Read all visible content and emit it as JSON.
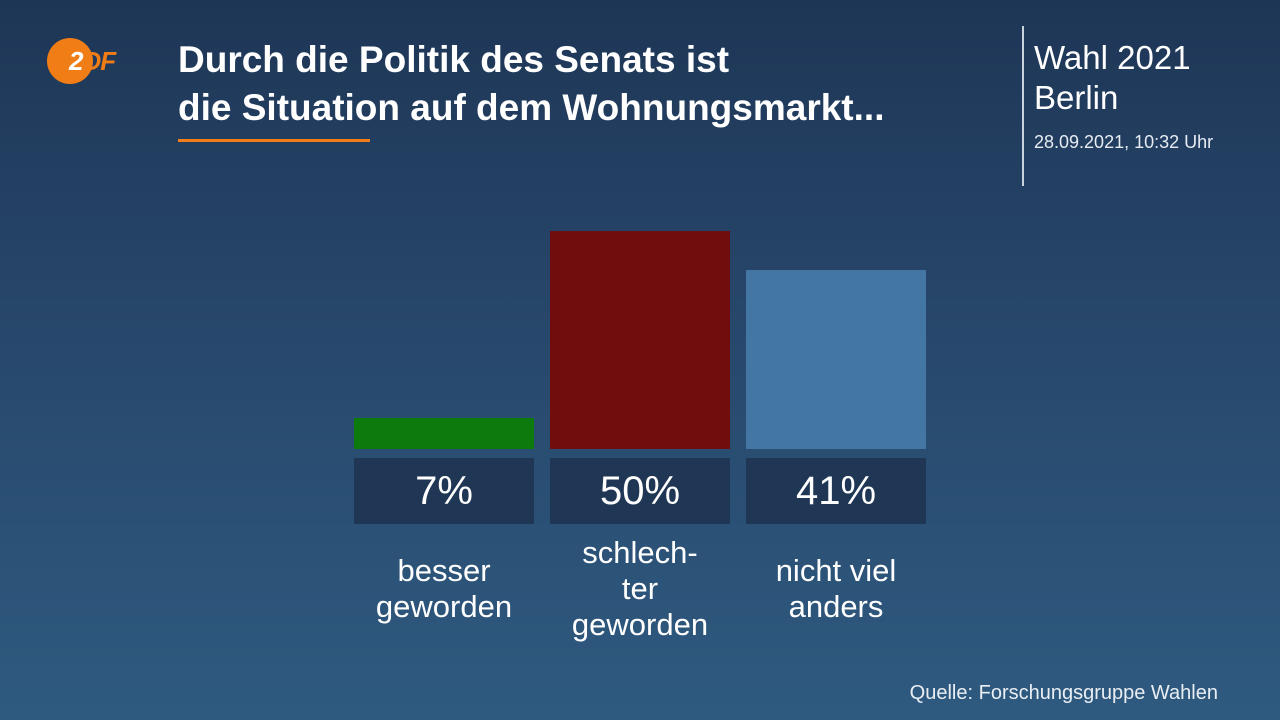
{
  "header": {
    "logo_text_z": "2",
    "logo_text_df": "DF",
    "title_line1": "Durch die Politik des Senats ist",
    "title_line2": "die Situation auf dem Wohnungsmarkt...",
    "info_line1": "Wahl 2021",
    "info_line2": "Berlin",
    "info_date": "28.09.2021, 10:32 Uhr"
  },
  "footer": {
    "source": "Quelle: Forschungsgruppe Wahlen"
  },
  "colors": {
    "accent_orange": "#f07d16",
    "bar_green": "#0d7a0d",
    "bar_red": "#720d0e",
    "bar_blue": "#4476a3",
    "value_box": "#1f3754"
  },
  "chart_data": {
    "type": "bar",
    "title": "Durch die Politik des Senats ist die Situation auf dem Wohnungsmarkt...",
    "categories": [
      "besser\ngeworden",
      "schlech-\nter\ngeworden",
      "nicht viel\nanders"
    ],
    "values": [
      7,
      50,
      41
    ],
    "value_labels": [
      "7%",
      "50%",
      "41%"
    ],
    "bar_colors": [
      "#0d7a0d",
      "#720d0e",
      "#4476a3"
    ],
    "ylim": [
      0,
      50
    ],
    "grid": false,
    "legend": "none"
  }
}
